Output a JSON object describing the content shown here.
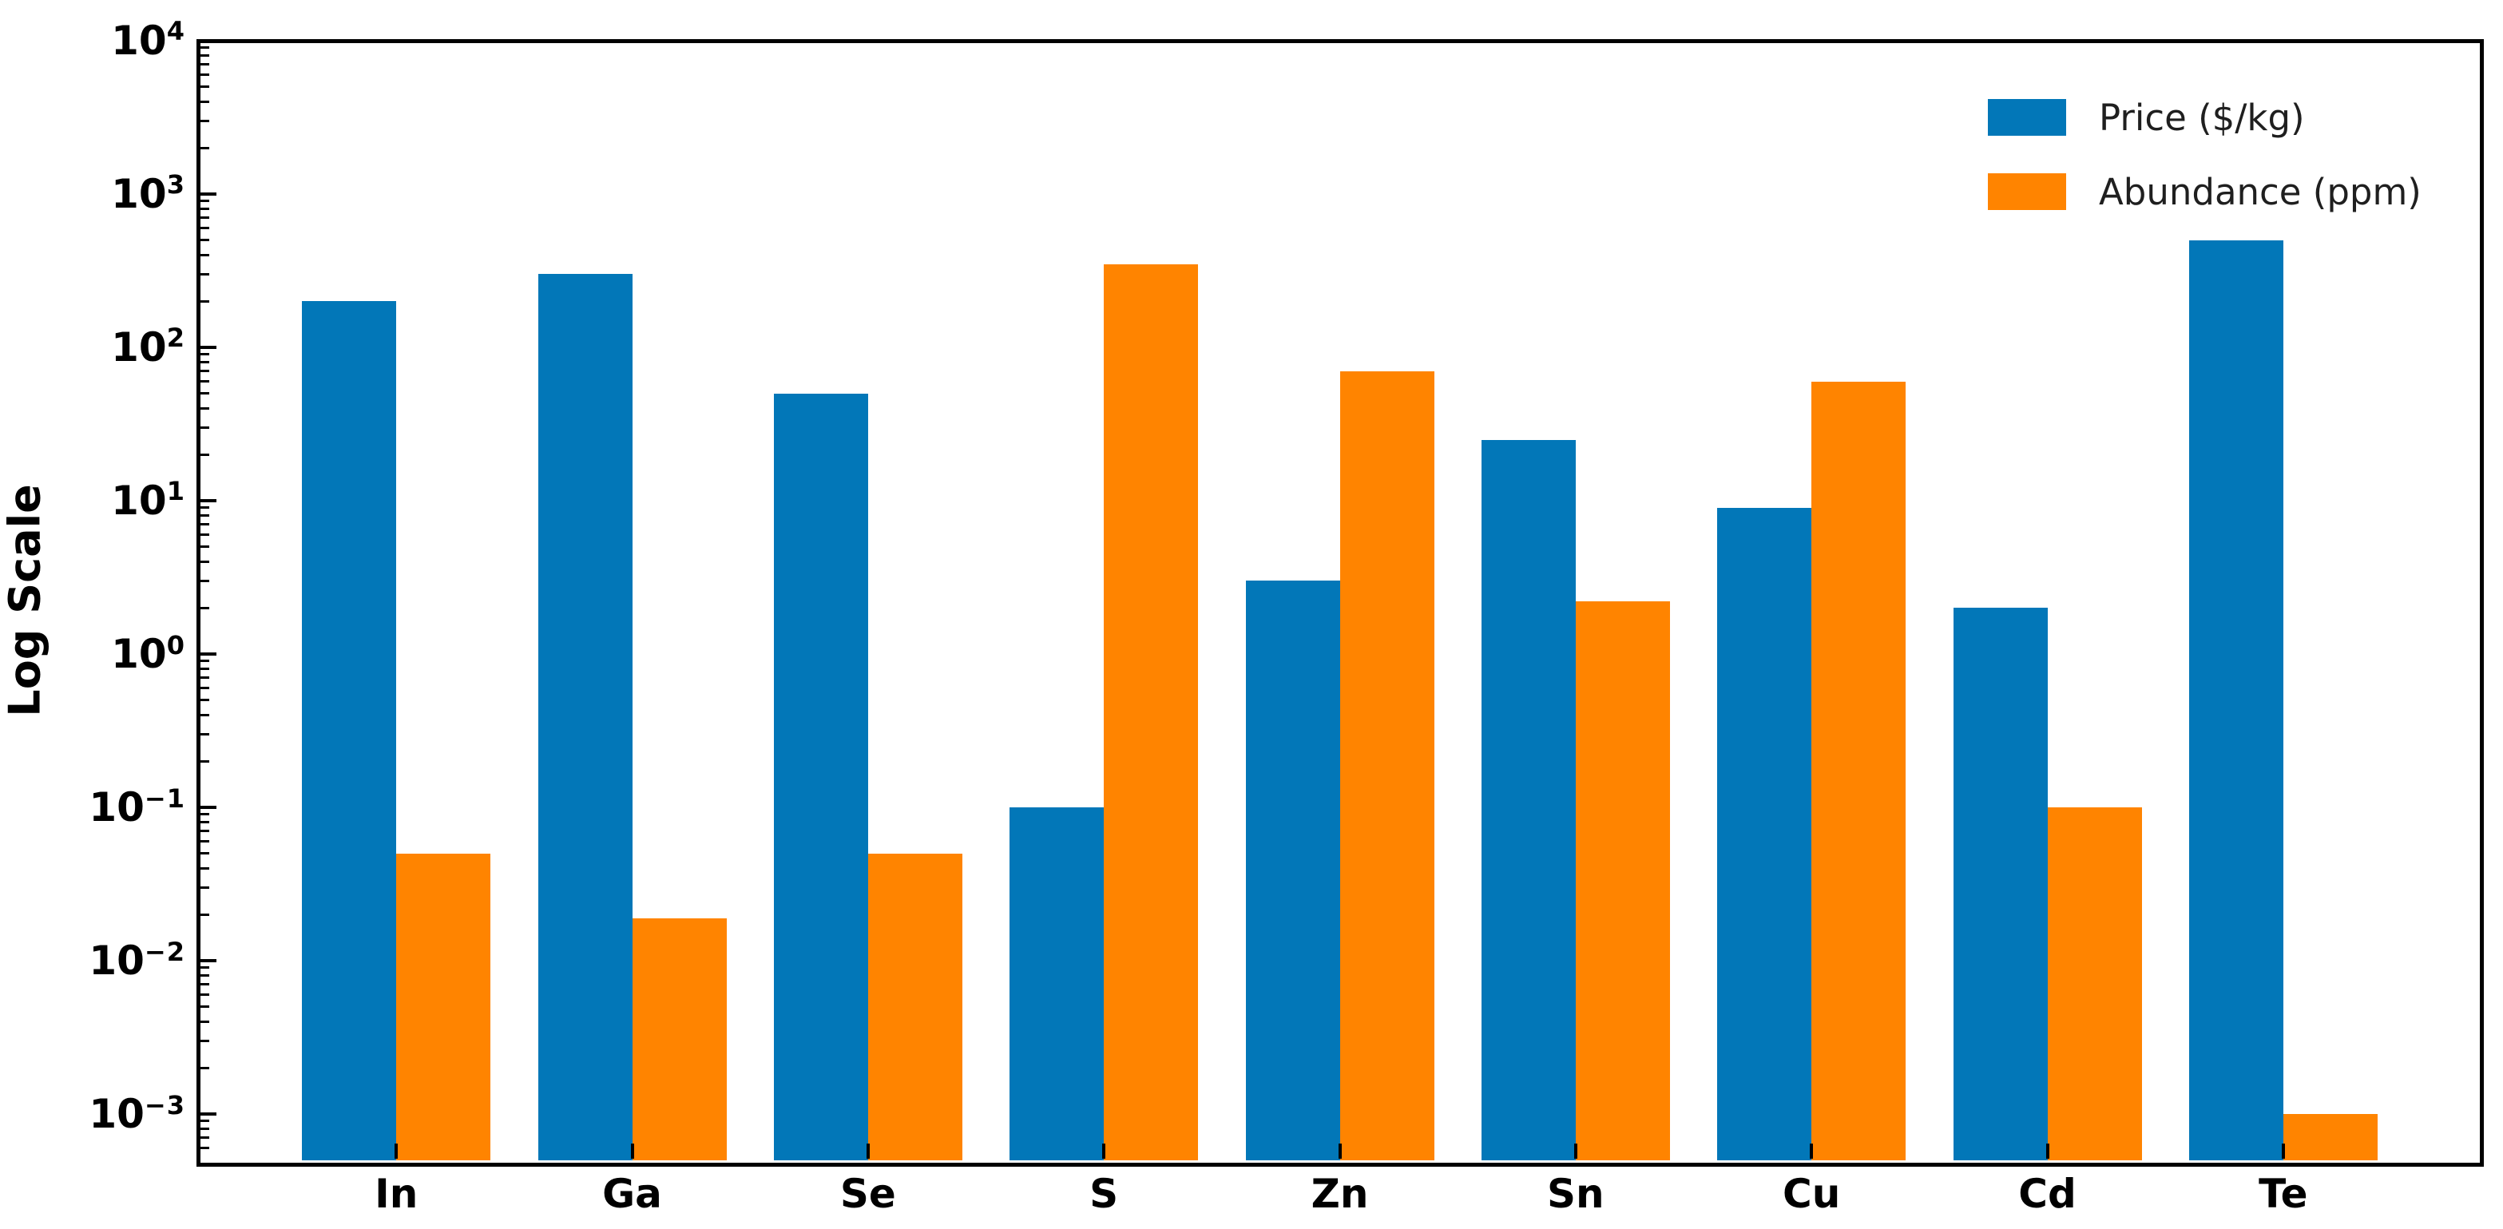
{
  "figure": {
    "background": "#ffffff",
    "text_color": "#000000",
    "ylabel": "Log Scale"
  },
  "chart_data": {
    "type": "bar",
    "title": "",
    "xlabel": "",
    "ylabel": "Log Scale",
    "yscale": "log",
    "ylim": [
      0.0005,
      10000
    ],
    "grid": false,
    "legend_position": "upper right",
    "legend_frame": false,
    "categories": [
      "In",
      "Ga",
      "Se",
      "S",
      "Zn",
      "Sn",
      "Cu",
      "Cd",
      "Te"
    ],
    "series": [
      {
        "name": "Price ($/kg)",
        "color": "#0277b8",
        "values": [
          200,
          300,
          50,
          0.1,
          3,
          25,
          9,
          2,
          500
        ]
      },
      {
        "name": "Abundance (ppm)",
        "color": "#ff8400",
        "values": [
          0.05,
          0.019,
          0.05,
          350,
          70,
          2.2,
          60,
          0.1,
          0.001
        ]
      }
    ],
    "ytick_exponents": [
      -3,
      -2,
      -1,
      0,
      1,
      2,
      3,
      4
    ]
  }
}
